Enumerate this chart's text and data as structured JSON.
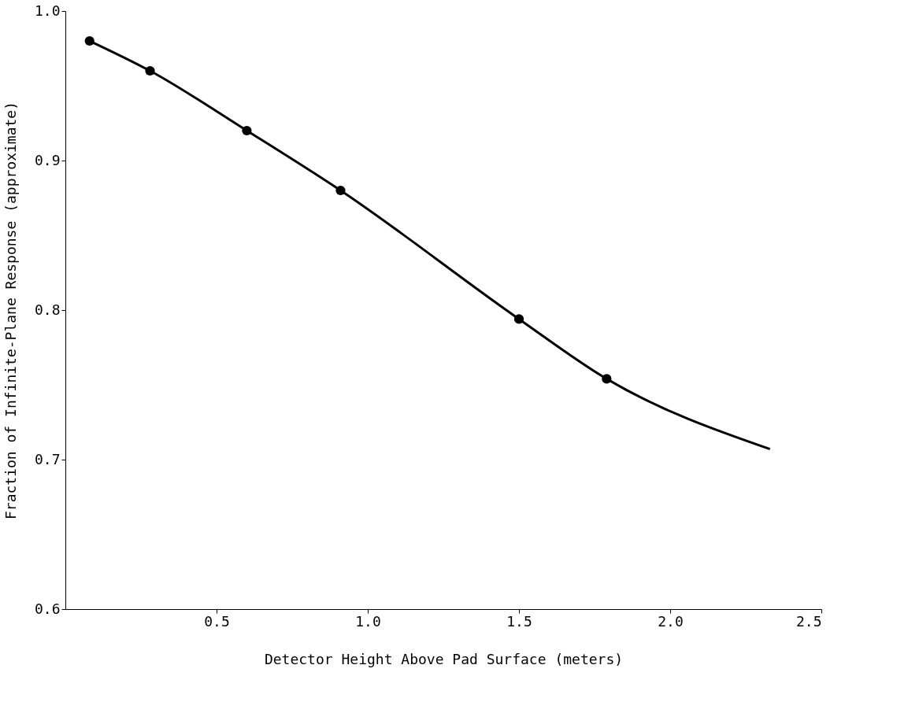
{
  "chart_data": {
    "type": "line",
    "xlabel": "Detector Height Above Pad Surface (meters)",
    "ylabel": "Fraction of Infinite-Plane Response (approximate)",
    "series": [
      {
        "color": "#000000",
        "marker": "none",
        "x": [
          0.08,
          0.28,
          0.6,
          0.91,
          1.5,
          1.79,
          2.33
        ],
        "values": [
          0.98,
          0.96,
          0.92,
          0.88,
          0.794,
          0.754,
          0.707
        ]
      },
      {
        "type": "scatter",
        "color": "#000000",
        "marker": "circle",
        "x": [
          0.08,
          0.28,
          0.6,
          0.91,
          1.5,
          1.79
        ],
        "values": [
          0.98,
          0.96,
          0.92,
          0.88,
          0.794,
          0.754
        ]
      }
    ],
    "xlim": [
      0,
      2.5
    ],
    "xticks": [
      0.5,
      {
        "value": 1,
        "label": "1.0"
      },
      1.5,
      {
        "value": 2,
        "label": "2.0"
      },
      2.5
    ],
    "ylim": [
      0.6,
      1.0
    ],
    "yticks": [
      0.6,
      0.7,
      0.8,
      0.9,
      {
        "value": 1,
        "label": "1.0"
      }
    ],
    "grid": false
  }
}
